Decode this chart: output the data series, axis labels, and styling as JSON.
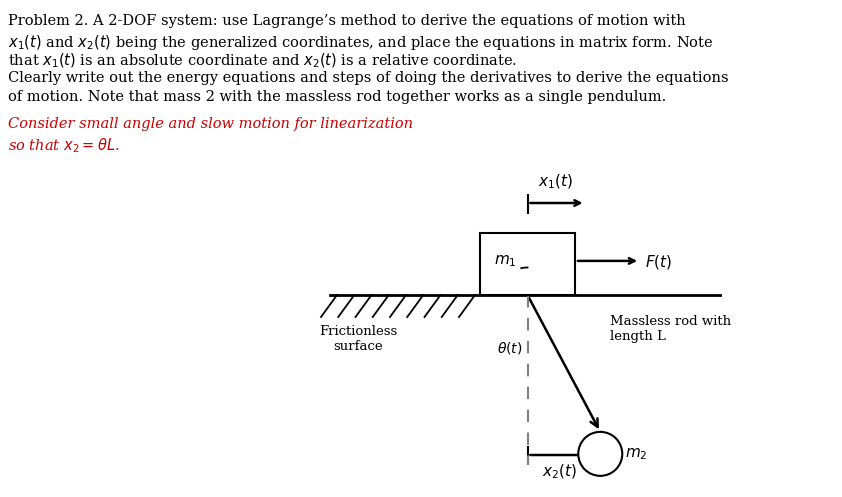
{
  "bg_color": "#ffffff",
  "text_color": "#000000",
  "red_color": "#cc0000",
  "title_lines": [
    "Problem 2. A 2-DOF system: use Lagrange’s method to derive the equations of motion with",
    "$x_1(t)$ and $x_2(t)$ being the generalized coordinates, and place the equations in matrix form. Note",
    "that $x_1(t)$ is an absolute coordinate and $x_2(t)$ is a relative coordinate.",
    "Clearly write out the energy equations and steps of doing the derivatives to derive the equations",
    "of motion. Note that mass 2 with the massless rod together works as a single pendulum."
  ],
  "red_lines": [
    "Consider small angle and slow motion for linearization",
    "so that $x_2 = \\theta L$."
  ],
  "fontsize_main": 10.5,
  "fontsize_label": 10.0,
  "fontsize_small": 9.0
}
